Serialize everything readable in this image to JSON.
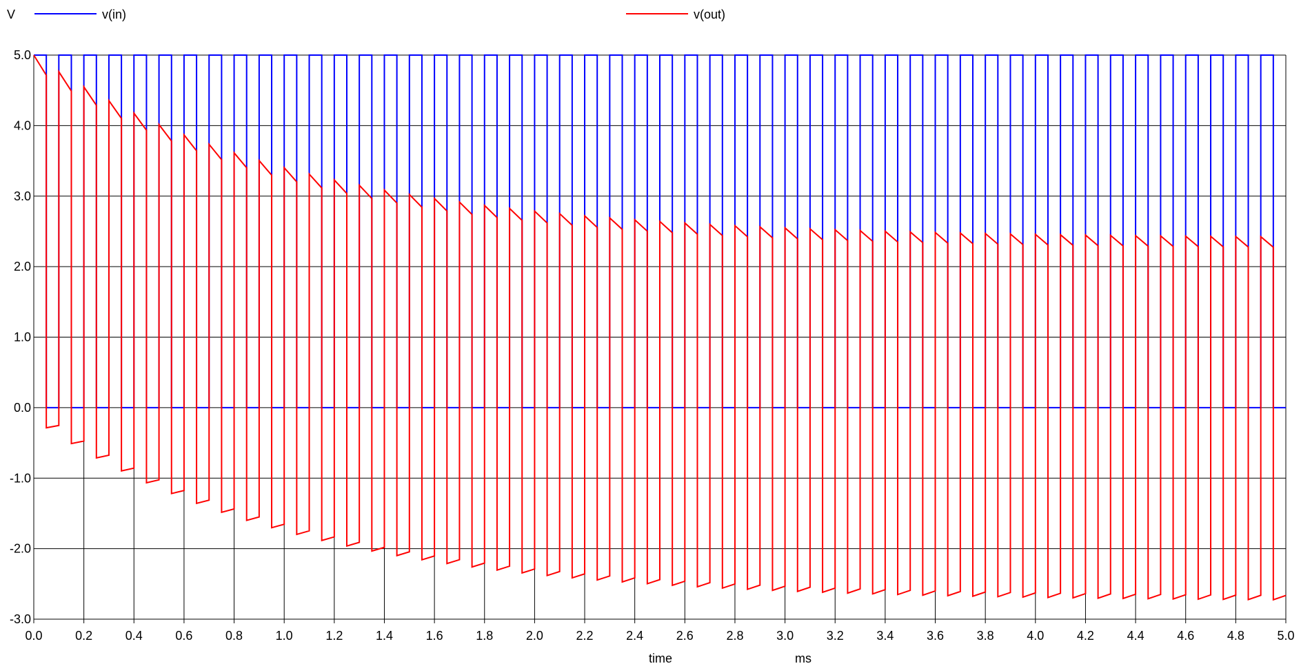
{
  "chart_data": {
    "type": "line",
    "ylabel": "V",
    "xlabel": "time",
    "x_unit": "ms",
    "xlim": [
      0.0,
      5.0
    ],
    "ylim": [
      -3.0,
      5.0
    ],
    "x_ticks": [
      "0.0",
      "0.2",
      "0.4",
      "0.6",
      "0.8",
      "1.0",
      "1.2",
      "1.4",
      "1.6",
      "1.8",
      "2.0",
      "2.2",
      "2.4",
      "2.6",
      "2.8",
      "3.0",
      "3.2",
      "3.4",
      "3.6",
      "3.8",
      "4.0",
      "4.2",
      "4.4",
      "4.6",
      "4.8",
      "5.0"
    ],
    "y_ticks": [
      "5.0",
      "4.0",
      "3.0",
      "2.0",
      "1.0",
      "0.0",
      "-1.0",
      "-2.0",
      "-3.0"
    ],
    "grid": true,
    "legend_position": "top",
    "period_ms": 0.1,
    "duty_cycle": 0.5,
    "series": [
      {
        "name": "v(in)",
        "color": "#0000ff",
        "waveform": "square",
        "high": 5.0,
        "low": 0.0
      },
      {
        "name": "v(out)",
        "color": "#ff0000",
        "waveform": "rc_highpass",
        "initial_high": 5.0,
        "final_high": 2.4,
        "final_low": -2.6,
        "initial_low_drop": 0.25
      }
    ]
  }
}
